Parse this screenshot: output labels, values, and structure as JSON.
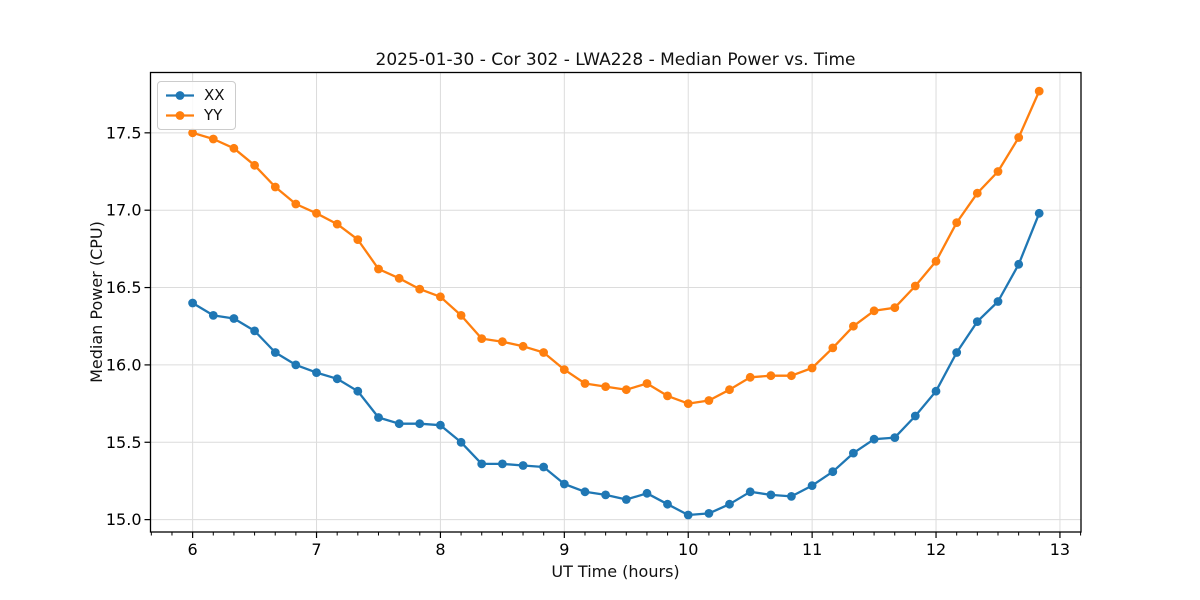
{
  "chart_data": {
    "type": "line",
    "title": "2025-01-30 - Cor 302 - LWA228 - Median Power vs. Time",
    "xlabel": "UT Time (hours)",
    "ylabel": "Median Power (CPU)",
    "xlim": [
      5.66,
      13.17
    ],
    "ylim": [
      14.92,
      17.89
    ],
    "xticks": [
      6,
      7,
      8,
      9,
      10,
      11,
      12,
      13
    ],
    "yticks": [
      15.0,
      15.5,
      16.0,
      16.5,
      17.0,
      17.5
    ],
    "minor_xtick_step_hours": 0.1667,
    "grid": true,
    "legend_position": "upper-left",
    "x": [
      6.0,
      6.167,
      6.333,
      6.5,
      6.667,
      6.833,
      7.0,
      7.167,
      7.333,
      7.5,
      7.667,
      7.833,
      8.0,
      8.167,
      8.333,
      8.5,
      8.667,
      8.833,
      9.0,
      9.167,
      9.333,
      9.5,
      9.667,
      9.833,
      10.0,
      10.167,
      10.333,
      10.5,
      10.667,
      10.833,
      11.0,
      11.167,
      11.333,
      11.5,
      11.667,
      11.833,
      12.0,
      12.167,
      12.333,
      12.5,
      12.667,
      12.833
    ],
    "series": [
      {
        "name": "XX",
        "color": "#1f77b4",
        "values": [
          16.4,
          16.32,
          16.3,
          16.22,
          16.08,
          16.0,
          15.95,
          15.91,
          15.83,
          15.66,
          15.62,
          15.62,
          15.61,
          15.5,
          15.36,
          15.36,
          15.35,
          15.34,
          15.23,
          15.18,
          15.16,
          15.13,
          15.17,
          15.1,
          15.03,
          15.04,
          15.1,
          15.18,
          15.16,
          15.15,
          15.22,
          15.31,
          15.43,
          15.52,
          15.53,
          15.67,
          15.83,
          16.08,
          16.28,
          16.41,
          16.65,
          16.98
        ]
      },
      {
        "name": "YY",
        "color": "#ff7f0e",
        "values": [
          17.5,
          17.46,
          17.4,
          17.29,
          17.15,
          17.04,
          16.98,
          16.91,
          16.81,
          16.62,
          16.56,
          16.49,
          16.44,
          16.32,
          16.17,
          16.15,
          16.12,
          16.08,
          15.97,
          15.88,
          15.86,
          15.84,
          15.88,
          15.8,
          15.75,
          15.77,
          15.84,
          15.92,
          15.93,
          15.93,
          15.98,
          16.11,
          16.25,
          16.35,
          16.37,
          16.51,
          16.67,
          16.92,
          17.11,
          17.25,
          17.47,
          17.77
        ]
      }
    ]
  },
  "colors": {
    "grid": "#dcdcdc",
    "spine": "#000000",
    "blue_series": "#1f77b4",
    "orange_series": "#ff7f0e"
  }
}
